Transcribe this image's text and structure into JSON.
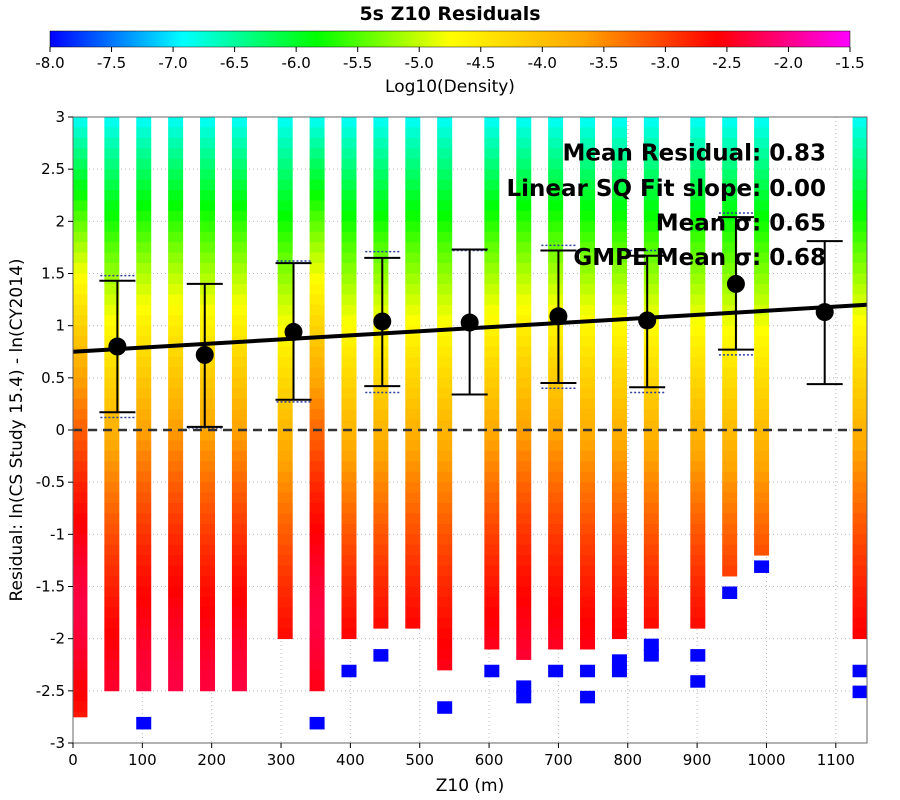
{
  "chart_data": {
    "type": "heatmap",
    "title": "5s Z10 Residuals",
    "xlabel": "Z10 (m)",
    "ylabel": "Residual: ln(CS Study 15.4) - ln(CY2014)",
    "xlim": [
      0,
      1145
    ],
    "ylim": [
      -3,
      3
    ],
    "x_ticks": [
      "0",
      "100",
      "200",
      "300",
      "400",
      "500",
      "600",
      "700",
      "800",
      "900",
      "1000",
      "1100"
    ],
    "y_ticks": [
      "3",
      "2.5",
      "2",
      "1.5",
      "1",
      "0.5",
      "0",
      "-0.5",
      "-1",
      "-1.5",
      "-2",
      "-2.5",
      "-3"
    ],
    "colorbar": {
      "label": "Log10(Density)",
      "range": [
        -8.0,
        -1.5
      ],
      "ticks": [
        "-8.0",
        "-7.5",
        "-7.0",
        "-6.5",
        "-6.0",
        "-5.5",
        "-5.0",
        "-4.5",
        "-4.0",
        "-3.5",
        "-3.0",
        "-2.5",
        "-2.0",
        "-1.5"
      ],
      "colors": [
        "#0000ff",
        "#00ffff",
        "#00ff00",
        "#ffff00",
        "#ffa500",
        "#ff0000",
        "#ff00ff"
      ]
    },
    "columns": [
      {
        "x": 10,
        "top": 3.0,
        "bottom": -2.75,
        "peak": -1.7,
        "bottom_cells": []
      },
      {
        "x": 56,
        "top": 3.0,
        "bottom": -2.5,
        "peak": -3.0,
        "bottom_cells": []
      },
      {
        "x": 102,
        "top": 3.0,
        "bottom": -2.5,
        "peak": -2.6,
        "bottom_cells": [
          -2.75
        ]
      },
      {
        "x": 148,
        "top": 3.0,
        "bottom": -2.5,
        "peak": -2.5,
        "bottom_cells": []
      },
      {
        "x": 194,
        "top": 3.0,
        "bottom": -2.5,
        "peak": -2.7,
        "bottom_cells": []
      },
      {
        "x": 240,
        "top": 3.0,
        "bottom": -2.5,
        "peak": -2.6,
        "bottom_cells": []
      },
      {
        "x": 306,
        "top": 3.0,
        "bottom": -2.0,
        "peak": -3.2,
        "bottom_cells": []
      },
      {
        "x": 352,
        "top": 3.0,
        "bottom": -2.5,
        "peak": -1.8,
        "bottom_cells": [
          -2.75,
          -3.0
        ]
      },
      {
        "x": 398,
        "top": 3.0,
        "bottom": -2.0,
        "peak": -3.1,
        "bottom_cells": [
          -2.25
        ]
      },
      {
        "x": 444,
        "top": 3.0,
        "bottom": -1.9,
        "peak": -3.1,
        "bottom_cells": [
          -2.1
        ]
      },
      {
        "x": 490,
        "top": 3.0,
        "bottom": -1.9,
        "peak": -3.0,
        "bottom_cells": []
      },
      {
        "x": 536,
        "top": 3.0,
        "bottom": -2.3,
        "peak": -3.1,
        "bottom_cells": [
          -2.6
        ]
      },
      {
        "x": 604,
        "top": 3.0,
        "bottom": -2.1,
        "peak": -2.8,
        "bottom_cells": [
          -2.25
        ]
      },
      {
        "x": 650,
        "top": 3.0,
        "bottom": -2.2,
        "peak": -2.6,
        "bottom_cells": [
          -2.4,
          -2.5
        ]
      },
      {
        "x": 696,
        "top": 3.0,
        "bottom": -2.1,
        "peak": -2.7,
        "bottom_cells": [
          -2.25
        ]
      },
      {
        "x": 742,
        "top": 3.0,
        "bottom": -2.1,
        "peak": -2.9,
        "bottom_cells": [
          -2.25,
          -2.5
        ]
      },
      {
        "x": 788,
        "top": 3.0,
        "bottom": -2.0,
        "peak": -3.0,
        "bottom_cells": [
          -2.15,
          -2.25
        ]
      },
      {
        "x": 834,
        "top": 3.0,
        "bottom": -1.9,
        "peak": -3.1,
        "bottom_cells": [
          -2.0,
          -2.1
        ]
      },
      {
        "x": 901,
        "top": 3.0,
        "bottom": -1.9,
        "peak": -3.1,
        "bottom_cells": [
          -2.1,
          -2.35
        ]
      },
      {
        "x": 947,
        "top": 3.0,
        "bottom": -1.4,
        "peak": -3.3,
        "bottom_cells": [
          -1.5
        ]
      },
      {
        "x": 993,
        "top": 3.0,
        "bottom": -1.2,
        "peak": -3.3,
        "bottom_cells": [
          -1.25
        ]
      },
      {
        "x": 1135,
        "top": 3.0,
        "bottom": -2.0,
        "peak": -3.0,
        "bottom_cells": [
          -2.25,
          -2.45
        ]
      }
    ],
    "bin_means": [
      {
        "x": 64,
        "mean": 0.8,
        "plus_sigma": 1.43,
        "minus_sigma": 0.17,
        "gmpe_plus": 1.48,
        "gmpe_minus": 0.12
      },
      {
        "x": 190,
        "mean": 0.72,
        "plus_sigma": 1.4,
        "minus_sigma": 0.03,
        "gmpe_plus": 1.4,
        "gmpe_minus": 0.02
      },
      {
        "x": 318,
        "mean": 0.94,
        "plus_sigma": 1.6,
        "minus_sigma": 0.29,
        "gmpe_plus": 1.62,
        "gmpe_minus": 0.27
      },
      {
        "x": 446,
        "mean": 1.04,
        "plus_sigma": 1.65,
        "minus_sigma": 0.42,
        "gmpe_plus": 1.71,
        "gmpe_minus": 0.36
      },
      {
        "x": 572,
        "mean": 1.03,
        "plus_sigma": 1.73,
        "minus_sigma": 0.34,
        "gmpe_plus": 1.72,
        "gmpe_minus": 0.34
      },
      {
        "x": 700,
        "mean": 1.09,
        "plus_sigma": 1.72,
        "minus_sigma": 0.45,
        "gmpe_plus": 1.77,
        "gmpe_minus": 0.4
      },
      {
        "x": 828,
        "mean": 1.05,
        "plus_sigma": 1.67,
        "minus_sigma": 0.41,
        "gmpe_plus": 1.72,
        "gmpe_minus": 0.36
      },
      {
        "x": 956,
        "mean": 1.4,
        "plus_sigma": 2.04,
        "minus_sigma": 0.77,
        "gmpe_plus": 2.08,
        "gmpe_minus": 0.72
      },
      {
        "x": 1084,
        "mean": 1.13,
        "plus_sigma": 1.81,
        "minus_sigma": 0.44,
        "gmpe_plus": 1.81,
        "gmpe_minus": 0.44
      }
    ],
    "fit_line": {
      "x": [
        0,
        1145
      ],
      "y": [
        0.75,
        1.2
      ]
    },
    "zero_line": 0,
    "annotations": [
      "Mean Residual: 0.83",
      "Linear SQ Fit slope: 0.00",
      "Mean σ: 0.65",
      "GMPE Mean σ: 0.68"
    ]
  }
}
